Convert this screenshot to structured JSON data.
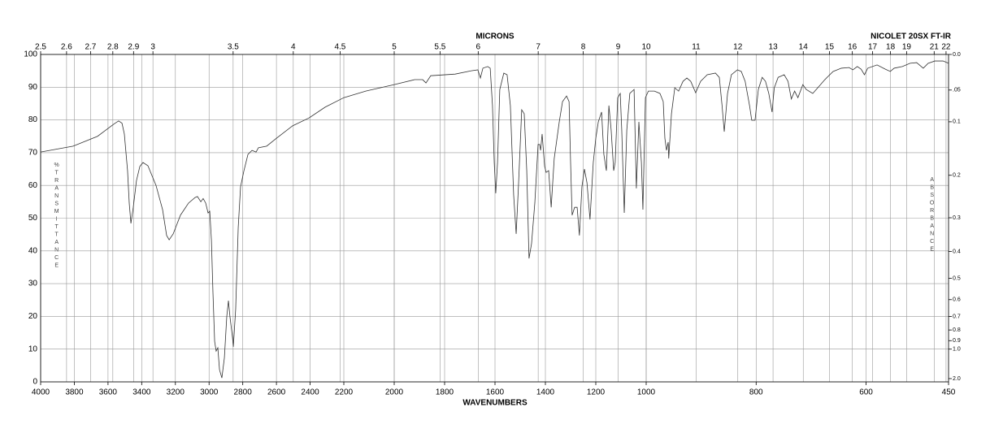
{
  "chart_data": {
    "type": "line",
    "title": "MICRONS",
    "subtitle": "NICOLET 20SX FT-IR",
    "x_label": "WAVENUMBERS",
    "y_label": "%TRANSMITTANCE",
    "y2_label": "ABSORBANCE",
    "color": "#333333",
    "grid": true,
    "xlim": [
      4000,
      450
    ],
    "xticks": [
      4000,
      3800,
      3600,
      3400,
      3200,
      3000,
      2800,
      2600,
      2400,
      2200,
      2000,
      1800,
      1600,
      1400,
      1200,
      1000,
      800,
      600,
      450
    ],
    "top_ticks": [
      2.5,
      2.6,
      2.7,
      2.8,
      2.9,
      3,
      3.5,
      4,
      4.5,
      5,
      5.5,
      6,
      7,
      8,
      9,
      10,
      11,
      12,
      13,
      14,
      15,
      16,
      17,
      18,
      19,
      21,
      22
    ],
    "ylim": [
      0,
      100
    ],
    "yticks": [
      0,
      10,
      20,
      30,
      40,
      50,
      60,
      70,
      80,
      90,
      100
    ],
    "y2ticks": [
      {
        "value": 0,
        "label": "0.0"
      },
      {
        "value": 0.05,
        "label": ".05"
      },
      {
        "value": 0.1,
        "label": "0.1"
      },
      {
        "value": 0.2,
        "label": "0.2"
      },
      {
        "value": 0.3,
        "label": "0.3"
      },
      {
        "value": 0.4,
        "label": "0.4"
      },
      {
        "value": 0.5,
        "label": "0.5"
      },
      {
        "value": 0.6,
        "label": "0.6"
      },
      {
        "value": 0.7,
        "label": "0.7"
      },
      {
        "value": 0.8,
        "label": "0.8"
      },
      {
        "value": 0.9,
        "label": "0.9"
      },
      {
        "value": 1,
        "label": "1.0"
      },
      {
        "value": 2,
        "label": "2.0"
      }
    ],
    "x": [
      4000,
      3807,
      3662,
      3566,
      3537,
      3517,
      3503,
      3484,
      3474,
      3464,
      3450,
      3431,
      3411,
      3392,
      3363,
      3315,
      3276,
      3252,
      3237,
      3213,
      3170,
      3122,
      3083,
      3069,
      3049,
      3035,
      3020,
      3006,
      2996,
      2986,
      2977,
      2967,
      2958,
      2948,
      2938,
      2924,
      2909,
      2895,
      2885,
      2876,
      2861,
      2856,
      2842,
      2827,
      2813,
      2793,
      2769,
      2745,
      2721,
      2707,
      2658,
      2600,
      2504,
      2407,
      2311,
      2200,
      2113,
      2000,
      1919,
      1887,
      1874,
      1855,
      1758,
      1694,
      1668,
      1658,
      1648,
      1629,
      1619,
      1610,
      1603,
      1597,
      1590,
      1581,
      1565,
      1552,
      1539,
      1526,
      1516,
      1507,
      1494,
      1484,
      1474,
      1465,
      1455,
      1442,
      1429,
      1423,
      1419,
      1413,
      1403,
      1397,
      1387,
      1377,
      1365,
      1345,
      1332,
      1316,
      1306,
      1300,
      1294,
      1284,
      1274,
      1265,
      1255,
      1245,
      1235,
      1223,
      1210,
      1200,
      1190,
      1177,
      1168,
      1158,
      1148,
      1139,
      1129,
      1123,
      1113,
      1103,
      1097,
      1087,
      1077,
      1065,
      1048,
      1039,
      1029,
      1019,
      1013,
      1003,
      996,
      985,
      975,
      969,
      966,
      963,
      960,
      959,
      954,
      948,
      941,
      933,
      926,
      919,
      910,
      901,
      889,
      874,
      867,
      862,
      858,
      852,
      845,
      834,
      827,
      820,
      812,
      808,
      802,
      796,
      789,
      783,
      777,
      771,
      767,
      760,
      749,
      742,
      736,
      730,
      724,
      715,
      709,
      697,
      688,
      675,
      660,
      645,
      631,
      624,
      616,
      609,
      603,
      597,
      580,
      565,
      556,
      549,
      534,
      520,
      508,
      496,
      487,
      475,
      460,
      450
    ],
    "values": [
      70.2,
      72,
      75,
      78.7,
      79.7,
      79,
      75.7,
      64.5,
      54.6,
      48.4,
      53.3,
      61.5,
      65.8,
      67,
      66,
      60,
      52.6,
      44.7,
      43.4,
      45.2,
      50.9,
      54.6,
      56.3,
      56.6,
      55,
      56,
      54.6,
      51.6,
      52.1,
      43.2,
      27.3,
      12.4,
      9.4,
      10.4,
      3.7,
      1.2,
      7.4,
      19.9,
      24.8,
      19.9,
      13.6,
      10.7,
      22.3,
      47.1,
      59.6,
      64.5,
      69.5,
      70.7,
      70.2,
      71.5,
      72,
      74.4,
      78.2,
      80.6,
      83.9,
      86.8,
      88.8,
      90.8,
      92.3,
      92.3,
      91.3,
      93.5,
      94,
      95,
      95.3,
      92.8,
      95.8,
      96.3,
      95.8,
      84.4,
      67,
      57.6,
      67,
      89.3,
      94.3,
      93.8,
      84.4,
      57.1,
      45.2,
      59.6,
      83.1,
      81.9,
      64.5,
      37.7,
      42.2,
      54.6,
      72.5,
      72.5,
      70.7,
      75.7,
      65.8,
      64,
      64.5,
      53.3,
      68.2,
      79.4,
      85.6,
      87.3,
      85.6,
      67,
      50.9,
      53.3,
      53.3,
      44.7,
      59.6,
      65,
      60.8,
      49.6,
      67,
      74.4,
      79.4,
      82.4,
      69.5,
      64.5,
      84.4,
      76.9,
      64.5,
      67,
      86.8,
      88.1,
      76.9,
      51.6,
      76.9,
      88.1,
      89.3,
      59.1,
      79.4,
      67,
      52.6,
      86.8,
      88.8,
      88.8,
      88.1,
      85.6,
      74.4,
      70.7,
      73.2,
      68.2,
      81.9,
      89.8,
      88.8,
      91.8,
      92.8,
      91.8,
      88.3,
      91.8,
      93.8,
      94.3,
      93,
      84.4,
      76.4,
      88.1,
      93.8,
      95.3,
      94.8,
      91.8,
      84.4,
      79.9,
      79.9,
      89.3,
      93,
      91.8,
      88.1,
      82.4,
      89.8,
      93,
      93.8,
      91.8,
      86.4,
      88.8,
      86.8,
      90.8,
      89.3,
      88.1,
      89.8,
      92.3,
      94.8,
      95.8,
      96,
      95.3,
      96.3,
      95.5,
      93.8,
      95.8,
      96.8,
      95.5,
      94.8,
      95.8,
      96.3,
      97.3,
      97.5,
      95.8,
      97.3,
      98,
      98,
      97.3
    ]
  }
}
